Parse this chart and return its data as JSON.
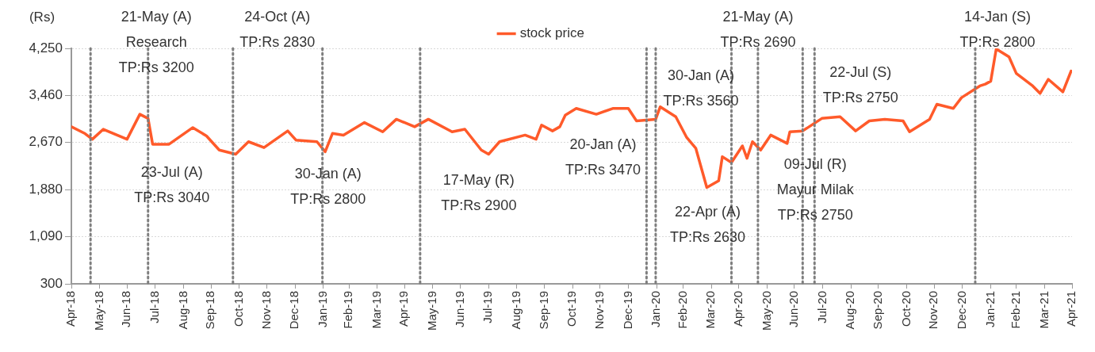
{
  "chart_data": {
    "type": "line",
    "ylabel": "(Rs)",
    "legend": "top",
    "grid": "y",
    "line_style": "solid",
    "marker": "none",
    "x": [
      "2018-04-30",
      "2018-05-15",
      "2018-05-23",
      "2018-06-04",
      "2018-06-30",
      "2018-07-14",
      "2018-07-23",
      "2018-07-28",
      "2018-08-15",
      "2018-09-10",
      "2018-09-25",
      "2018-10-09",
      "2018-10-27",
      "2018-11-10",
      "2018-11-27",
      "2018-12-23",
      "2019-01-01",
      "2019-01-24",
      "2019-02-02",
      "2019-02-10",
      "2019-02-22",
      "2019-03-17",
      "2019-04-06",
      "2019-04-21",
      "2019-05-11",
      "2019-05-26",
      "2019-06-21",
      "2019-07-05",
      "2019-07-23",
      "2019-07-31",
      "2019-08-12",
      "2019-09-09",
      "2019-09-21",
      "2019-09-27",
      "2019-10-09",
      "2019-10-17",
      "2019-10-23",
      "2019-11-04",
      "2019-11-26",
      "2019-12-14",
      "2019-12-31",
      "2020-01-09",
      "2020-01-30",
      "2020-02-04",
      "2020-02-21",
      "2020-03-04",
      "2020-03-14",
      "2020-03-26",
      "2020-04-08",
      "2020-04-12",
      "2020-04-22",
      "2020-05-04",
      "2020-05-09",
      "2020-05-15",
      "2020-05-24",
      "2020-06-04",
      "2020-06-22",
      "2020-06-25",
      "2020-07-09",
      "2020-07-30",
      "2020-08-19",
      "2020-09-05",
      "2020-09-20",
      "2020-10-07",
      "2020-10-27",
      "2020-11-03",
      "2020-11-25",
      "2020-12-03",
      "2020-12-21",
      "2020-12-30",
      "2021-01-19",
      "2021-01-25",
      "2021-01-31",
      "2021-02-06",
      "2021-02-20",
      "2021-02-28",
      "2021-03-18",
      "2021-03-26",
      "2021-04-04",
      "2021-04-20",
      "2021-04-29"
    ],
    "series": [
      {
        "name": "stock price",
        "color": "#ff5a2a",
        "values": [
          2935,
          2820,
          2726,
          2893,
          2726,
          3145,
          3075,
          2642,
          2642,
          2921,
          2780,
          2544,
          2474,
          2684,
          2586,
          2865,
          2712,
          2684,
          2516,
          2823,
          2795,
          3005,
          2851,
          3061,
          2935,
          3061,
          2851,
          2893,
          2544,
          2474,
          2684,
          2795,
          2726,
          2963,
          2865,
          2935,
          3131,
          3242,
          3145,
          3242,
          3242,
          3033,
          3061,
          3270,
          3103,
          2754,
          2572,
          1916,
          2028,
          2433,
          2335,
          2614,
          2405,
          2684,
          2544,
          2795,
          2656,
          2851,
          2865,
          3075,
          3103,
          2865,
          3033,
          3061,
          3033,
          2851,
          3061,
          3312,
          3242,
          3424,
          3619,
          3650,
          3700,
          4240,
          4108,
          3829,
          3619,
          3494,
          3731,
          3521,
          3870
        ]
      }
    ],
    "xlim": [
      "2018-04-30",
      "2021-04-30"
    ],
    "xticks": [
      {
        "value": "2018-04-30",
        "label": "Apr-18"
      },
      {
        "value": "2018-05-31",
        "label": "May-18"
      },
      {
        "value": "2018-06-30",
        "label": "Jun-18"
      },
      {
        "value": "2018-07-31",
        "label": "Jul-18"
      },
      {
        "value": "2018-08-31",
        "label": "Aug-18"
      },
      {
        "value": "2018-09-30",
        "label": "Sep-18"
      },
      {
        "value": "2018-10-31",
        "label": "Oct-18"
      },
      {
        "value": "2018-11-30",
        "label": "Nov-18"
      },
      {
        "value": "2018-12-31",
        "label": "Dec-18"
      },
      {
        "value": "2019-01-31",
        "label": "Jan-19"
      },
      {
        "value": "2019-02-28",
        "label": "Feb-19"
      },
      {
        "value": "2019-03-31",
        "label": "Mar-19"
      },
      {
        "value": "2019-04-30",
        "label": "Apr-19"
      },
      {
        "value": "2019-05-31",
        "label": "May-19"
      },
      {
        "value": "2019-06-30",
        "label": "Jun-19"
      },
      {
        "value": "2019-07-31",
        "label": "Jul-19"
      },
      {
        "value": "2019-08-31",
        "label": "Aug-19"
      },
      {
        "value": "2019-09-30",
        "label": "Sep-19"
      },
      {
        "value": "2019-10-31",
        "label": "Oct-19"
      },
      {
        "value": "2019-11-30",
        "label": "Nov-19"
      },
      {
        "value": "2019-12-31",
        "label": "Dec-19"
      },
      {
        "value": "2020-01-31",
        "label": "Jan-20"
      },
      {
        "value": "2020-02-29",
        "label": "Feb-20"
      },
      {
        "value": "2020-03-31",
        "label": "Mar-20"
      },
      {
        "value": "2020-04-30",
        "label": "Apr-20"
      },
      {
        "value": "2020-05-31",
        "label": "May-20"
      },
      {
        "value": "2020-06-30",
        "label": "Jun-20"
      },
      {
        "value": "2020-07-31",
        "label": "Jul-20"
      },
      {
        "value": "2020-08-31",
        "label": "Aug-20"
      },
      {
        "value": "2020-09-30",
        "label": "Sep-20"
      },
      {
        "value": "2020-10-31",
        "label": "Oct-20"
      },
      {
        "value": "2020-11-30",
        "label": "Nov-20"
      },
      {
        "value": "2020-12-31",
        "label": "Dec-20"
      },
      {
        "value": "2021-01-31",
        "label": "Jan-21"
      },
      {
        "value": "2021-02-28",
        "label": "Feb-21"
      },
      {
        "value": "2021-03-31",
        "label": "Mar-21"
      },
      {
        "value": "2021-04-30",
        "label": "Apr-21"
      }
    ],
    "ylim": [
      300,
      4250
    ],
    "yticks": [
      {
        "value": 300,
        "label": "300"
      },
      {
        "value": 1090,
        "label": "1,090"
      },
      {
        "value": 1880,
        "label": "1,880"
      },
      {
        "value": 2670,
        "label": "2,670"
      },
      {
        "value": 3460,
        "label": "3,460"
      },
      {
        "value": 4250,
        "label": "4,250"
      }
    ],
    "ref_lines": [
      {
        "axis": "x",
        "value": "2018-05-21",
        "label": "21-May (A)\nResearch\nTP:Rs 3200",
        "color": "#7f7f7f",
        "line_style": "dotted"
      },
      {
        "axis": "x",
        "value": "2018-07-23",
        "label": "23-Jul (A)\nTP:Rs 3040",
        "color": "#7f7f7f",
        "line_style": "dotted"
      },
      {
        "axis": "x",
        "value": "2018-10-24",
        "label": "24-Oct (A)\nTP:Rs 2830",
        "color": "#7f7f7f",
        "line_style": "dotted"
      },
      {
        "axis": "x",
        "value": "2019-01-30",
        "label": "30-Jan (A)\nTP:Rs 2800",
        "color": "#7f7f7f",
        "line_style": "dotted"
      },
      {
        "axis": "x",
        "value": "2019-05-17",
        "label": "17-May (R)\nTP:Rs 2900",
        "color": "#7f7f7f",
        "line_style": "dotted"
      },
      {
        "axis": "x",
        "value": "2020-01-20",
        "label": "20-Jan (A)\nTP:Rs 3470",
        "color": "#7f7f7f",
        "line_style": "dotted"
      },
      {
        "axis": "x",
        "value": "2020-01-30",
        "label": "30-Jan (A)\nTP:Rs 3560",
        "color": "#7f7f7f",
        "line_style": "dotted"
      },
      {
        "axis": "x",
        "value": "2020-04-22",
        "label": "22-Apr (A)\nTP:Rs 2630",
        "color": "#7f7f7f",
        "line_style": "dotted"
      },
      {
        "axis": "x",
        "value": "2020-05-21",
        "label": "21-May (A)\nTP:Rs 2690",
        "color": "#7f7f7f",
        "line_style": "dotted"
      },
      {
        "axis": "x",
        "value": "2020-07-09",
        "label": "09-Jul (R)\nMayur Milak\nTP:Rs 2750",
        "color": "#7f7f7f",
        "line_style": "dotted"
      },
      {
        "axis": "x",
        "value": "2020-07-22",
        "label": "22-Jul (S)\nTP:Rs 2750",
        "color": "#7f7f7f",
        "line_style": "dotted"
      },
      {
        "axis": "x",
        "value": "2021-01-14",
        "label": "14-Jan (S)\nTP:Rs 2800",
        "color": "#7f7f7f",
        "line_style": "dotted"
      }
    ]
  }
}
